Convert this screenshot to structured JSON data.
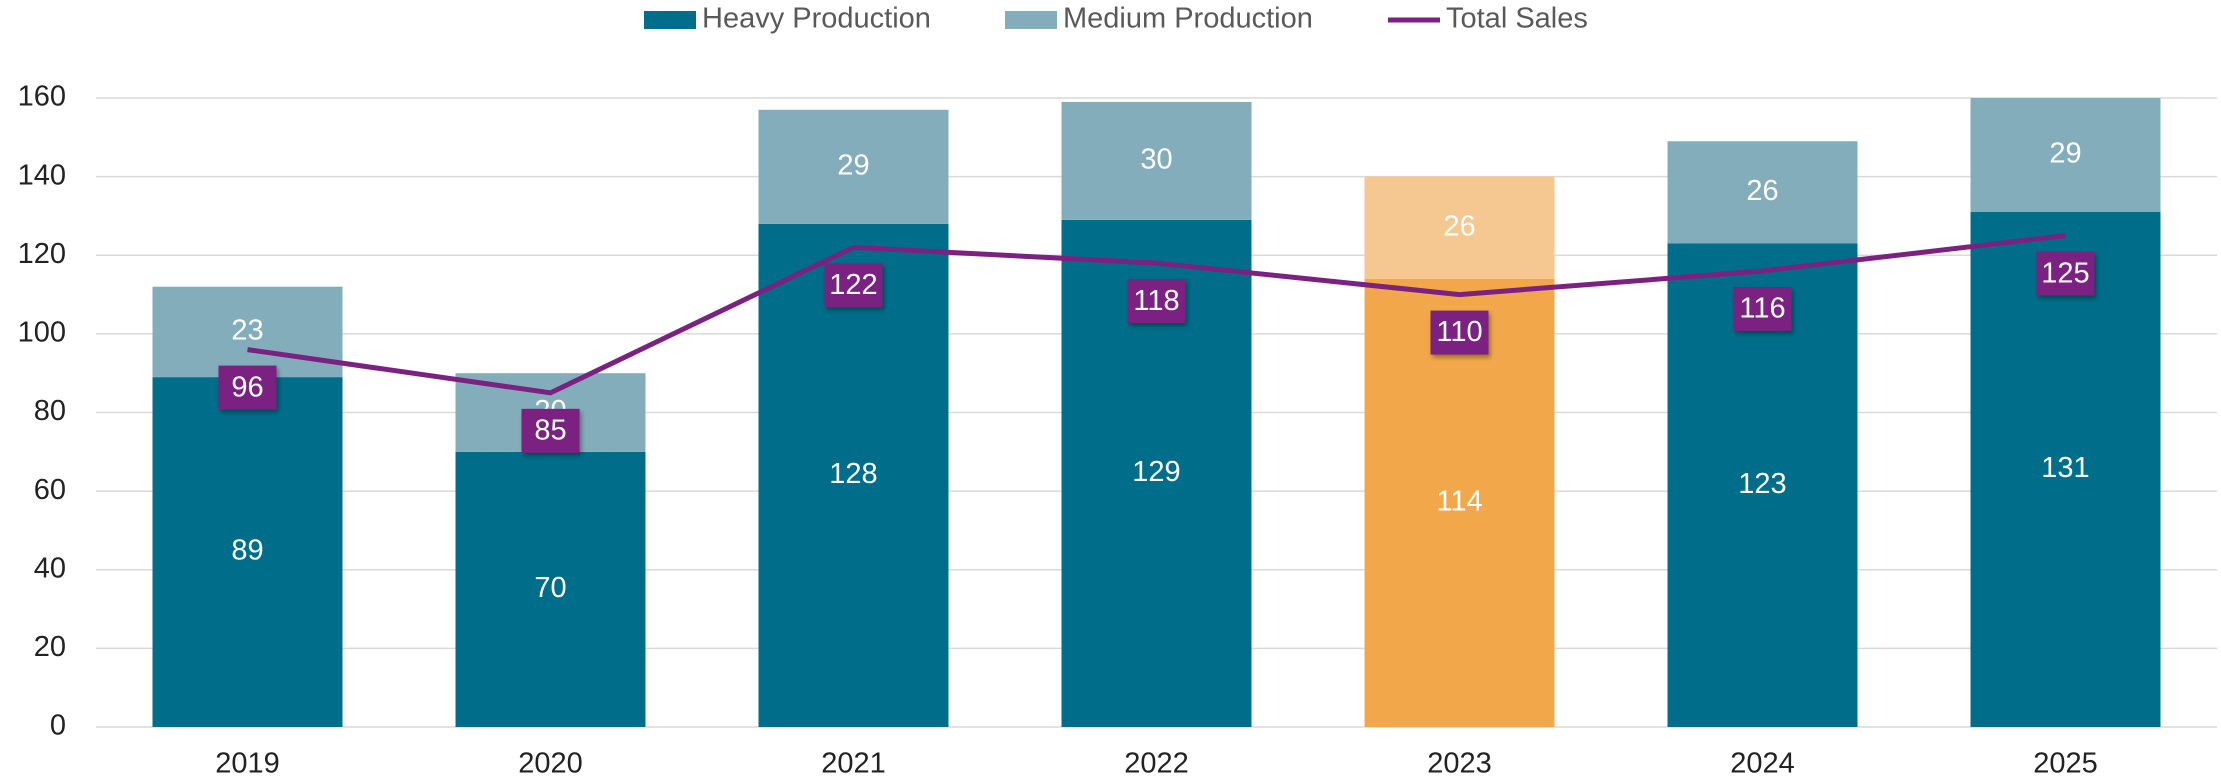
{
  "chart_data": {
    "type": "bar",
    "stacked": true,
    "categories": [
      "2019",
      "2020",
      "2021",
      "2022",
      "2023",
      "2024",
      "2025"
    ],
    "series": [
      {
        "name": "Heavy Production",
        "type": "bar",
        "color": "#006e8a",
        "colors": [
          "#006e8a",
          "#006e8a",
          "#006e8a",
          "#006e8a",
          "#f2a84a",
          "#006e8a",
          "#006e8a"
        ],
        "values": [
          89,
          70,
          128,
          129,
          114,
          123,
          131
        ]
      },
      {
        "name": "Medium Production",
        "type": "bar",
        "color": "#84adbb",
        "colors": [
          "#84adbb",
          "#84adbb",
          "#84adbb",
          "#84adbb",
          "#f6c891",
          "#84adbb",
          "#84adbb"
        ],
        "values": [
          23,
          20,
          29,
          30,
          26,
          26,
          29
        ]
      },
      {
        "name": "Total Sales",
        "type": "line",
        "color": "#7b2182",
        "values": [
          96,
          85,
          122,
          118,
          110,
          116,
          125
        ]
      }
    ],
    "ylim": [
      0,
      160
    ],
    "yticks": [
      0,
      20,
      40,
      60,
      80,
      100,
      120,
      140,
      160
    ],
    "grid": true,
    "legend": "top"
  }
}
